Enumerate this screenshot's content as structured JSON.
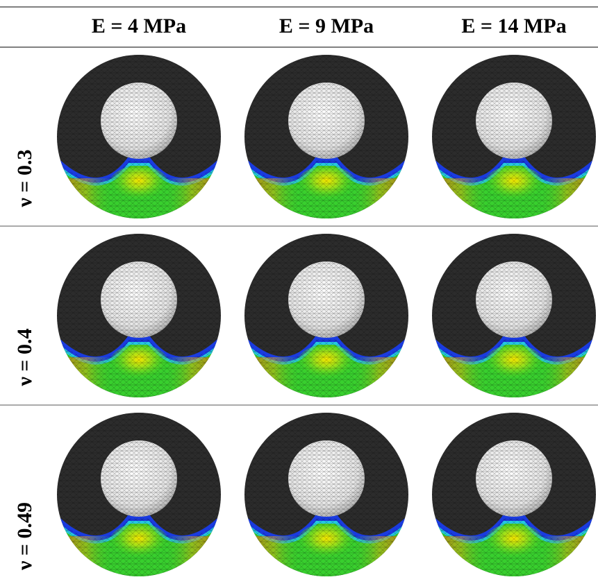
{
  "table": {
    "columns": [
      "E = 4 MPa",
      "E = 9 MPa",
      "E = 14 MPa"
    ],
    "rows": [
      "ν = 0.3",
      "ν = 0.4",
      "ν = 0.49"
    ]
  }
}
